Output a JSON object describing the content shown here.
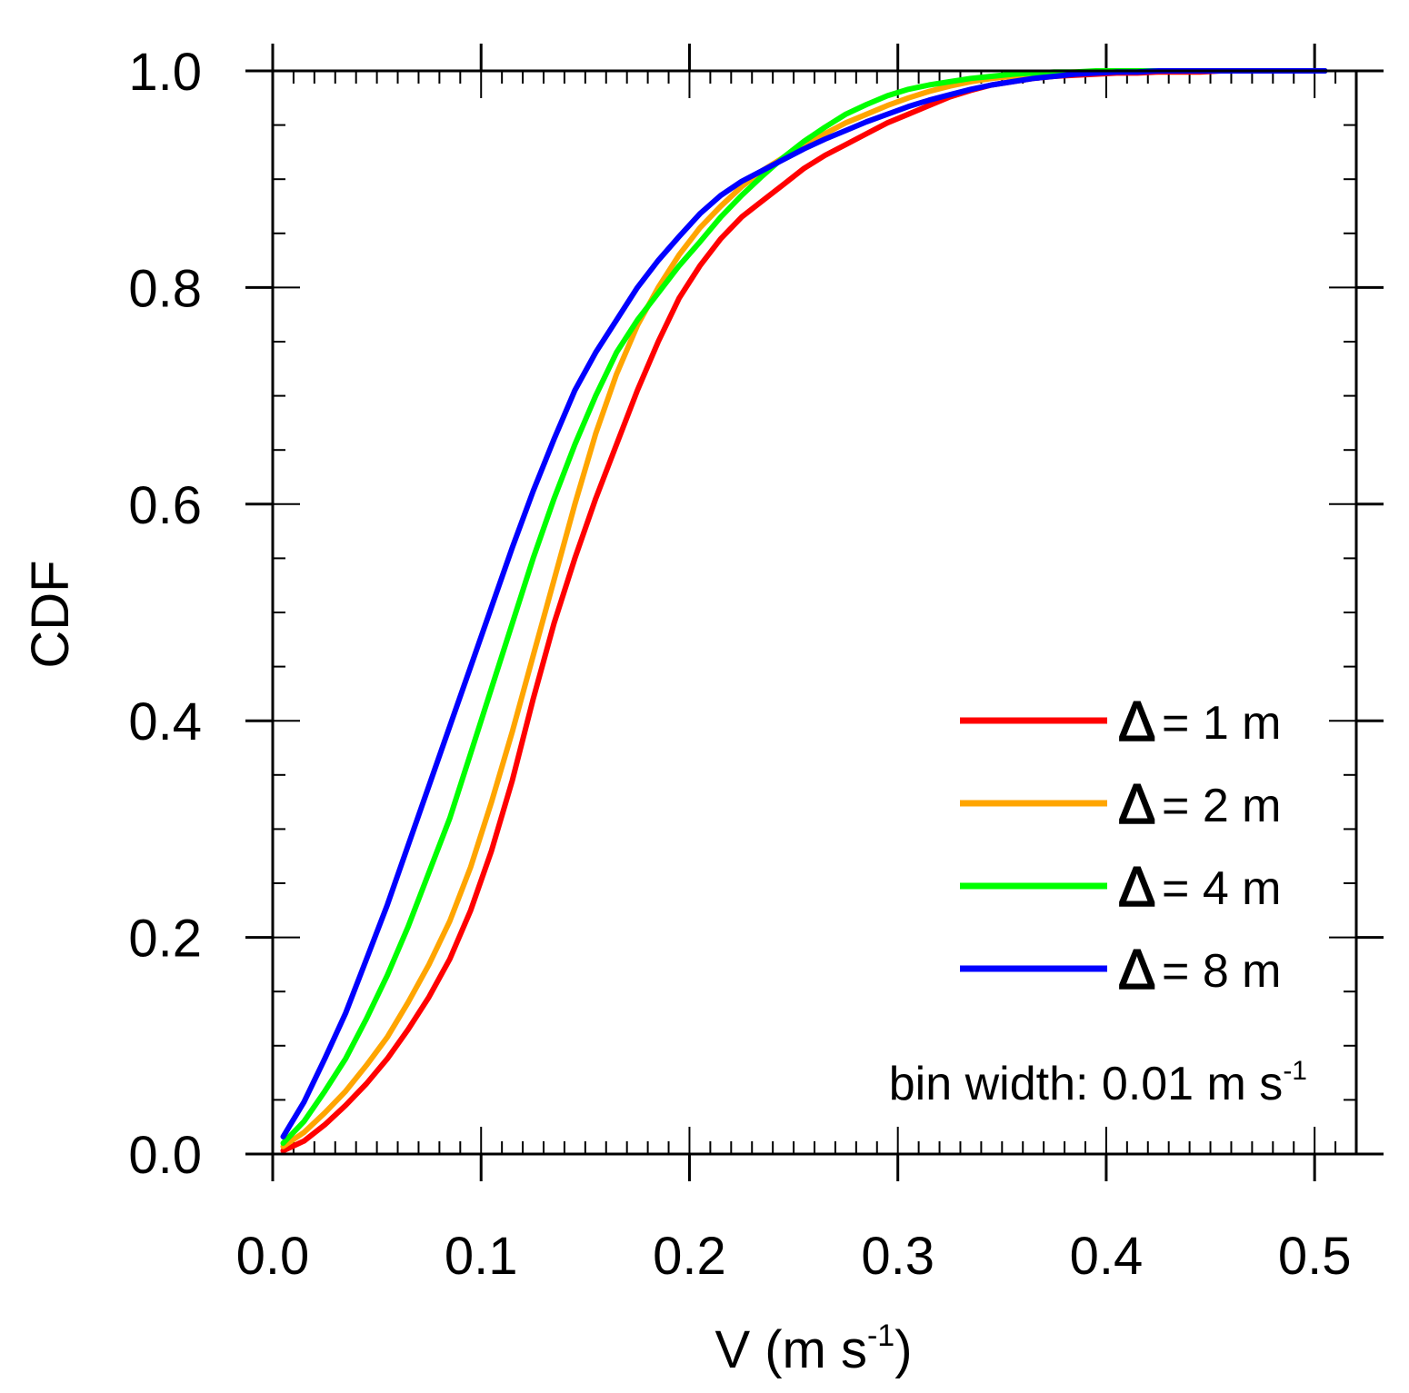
{
  "chart_data": {
    "type": "line",
    "xlabel": "V (m s",
    "xlabel_sup": "-1",
    "xlabel_end": ")",
    "ylabel": "CDF",
    "xlim": [
      0.0,
      0.52
    ],
    "ylim": [
      0.0,
      1.0
    ],
    "xticks": [
      0.0,
      0.1,
      0.2,
      0.3,
      0.4,
      0.5
    ],
    "xtick_labels": [
      "0.0",
      "0.1",
      "0.2",
      "0.3",
      "0.4",
      "0.5"
    ],
    "yticks": [
      0.0,
      0.2,
      0.4,
      0.6,
      0.8,
      1.0
    ],
    "ytick_labels": [
      "0.0",
      "0.2",
      "0.4",
      "0.6",
      "0.8",
      "1.0"
    ],
    "annotation": "bin width: 0.01 m s",
    "annotation_sup": "-1",
    "x": [
      0.005,
      0.015,
      0.025,
      0.035,
      0.045,
      0.055,
      0.065,
      0.075,
      0.085,
      0.095,
      0.105,
      0.115,
      0.125,
      0.135,
      0.145,
      0.155,
      0.165,
      0.175,
      0.185,
      0.195,
      0.205,
      0.215,
      0.225,
      0.235,
      0.245,
      0.255,
      0.265,
      0.275,
      0.285,
      0.295,
      0.305,
      0.315,
      0.325,
      0.335,
      0.345,
      0.355,
      0.365,
      0.375,
      0.385,
      0.395,
      0.405,
      0.415,
      0.425,
      0.435,
      0.445,
      0.455,
      0.465,
      0.475,
      0.485,
      0.495,
      0.505
    ],
    "series": [
      {
        "name": "Δ = 1 m",
        "symbol": "Δ",
        "label": "= 1 m",
        "color": "#ff0000",
        "values": [
          0.003,
          0.012,
          0.027,
          0.045,
          0.065,
          0.088,
          0.115,
          0.145,
          0.18,
          0.225,
          0.28,
          0.345,
          0.42,
          0.49,
          0.55,
          0.605,
          0.655,
          0.705,
          0.75,
          0.79,
          0.82,
          0.845,
          0.865,
          0.88,
          0.895,
          0.91,
          0.922,
          0.932,
          0.942,
          0.952,
          0.96,
          0.968,
          0.976,
          0.982,
          0.987,
          0.99,
          0.993,
          0.995,
          0.996,
          0.997,
          0.998,
          0.998,
          0.999,
          0.999,
          0.999,
          1.0,
          1.0,
          1.0,
          1.0,
          1.0,
          1.0
        ]
      },
      {
        "name": "Δ = 2 m",
        "symbol": "Δ",
        "label": "= 2 m",
        "color": "#ffa500",
        "values": [
          0.007,
          0.02,
          0.038,
          0.058,
          0.082,
          0.108,
          0.14,
          0.175,
          0.215,
          0.265,
          0.325,
          0.39,
          0.46,
          0.53,
          0.6,
          0.665,
          0.72,
          0.765,
          0.8,
          0.83,
          0.855,
          0.875,
          0.893,
          0.908,
          0.92,
          0.932,
          0.942,
          0.952,
          0.96,
          0.968,
          0.975,
          0.981,
          0.986,
          0.99,
          0.993,
          0.995,
          0.997,
          0.998,
          0.999,
          0.999,
          1.0,
          1.0,
          1.0,
          1.0,
          1.0,
          1.0,
          1.0,
          1.0,
          1.0,
          1.0,
          1.0
        ]
      },
      {
        "name": "Δ = 4 m",
        "symbol": "Δ",
        "label": "= 4 m",
        "color": "#00ff00",
        "values": [
          0.01,
          0.03,
          0.058,
          0.088,
          0.125,
          0.165,
          0.21,
          0.26,
          0.31,
          0.37,
          0.43,
          0.49,
          0.55,
          0.605,
          0.655,
          0.7,
          0.74,
          0.77,
          0.795,
          0.82,
          0.842,
          0.865,
          0.885,
          0.903,
          0.92,
          0.935,
          0.948,
          0.96,
          0.969,
          0.977,
          0.983,
          0.987,
          0.99,
          0.993,
          0.995,
          0.997,
          0.998,
          0.999,
          0.999,
          1.0,
          1.0,
          1.0,
          1.0,
          1.0,
          1.0,
          1.0,
          1.0,
          1.0,
          1.0,
          1.0,
          1.0
        ]
      },
      {
        "name": "Δ = 8 m",
        "symbol": "Δ",
        "label": "= 8 m",
        "color": "#0000ff",
        "values": [
          0.016,
          0.048,
          0.088,
          0.13,
          0.18,
          0.23,
          0.285,
          0.34,
          0.395,
          0.45,
          0.505,
          0.56,
          0.612,
          0.66,
          0.705,
          0.74,
          0.77,
          0.8,
          0.825,
          0.847,
          0.868,
          0.885,
          0.898,
          0.908,
          0.918,
          0.928,
          0.937,
          0.945,
          0.953,
          0.96,
          0.967,
          0.973,
          0.978,
          0.983,
          0.987,
          0.99,
          0.993,
          0.995,
          0.997,
          0.998,
          0.999,
          0.999,
          1.0,
          1.0,
          1.0,
          1.0,
          1.0,
          1.0,
          1.0,
          1.0,
          1.0
        ]
      }
    ]
  }
}
